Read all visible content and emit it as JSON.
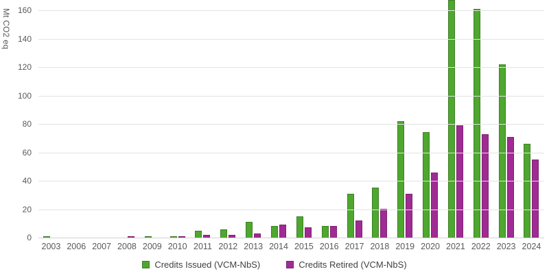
{
  "chart_data": {
    "type": "bar",
    "title": "",
    "xlabel": "",
    "ylabel": "Mt CO2 eq",
    "ylim": [
      0,
      160
    ],
    "yticks": [
      0,
      20,
      40,
      60,
      80,
      100,
      120,
      140,
      160
    ],
    "grid": true,
    "legend_position": "bottom",
    "categories": [
      "2003",
      "2006",
      "2007",
      "2008",
      "2009",
      "2010",
      "2011",
      "2012",
      "2013",
      "2014",
      "2015",
      "2016",
      "2017",
      "2018",
      "2019",
      "2020",
      "2021",
      "2022",
      "2023",
      "2024"
    ],
    "series": [
      {
        "name": "Credits Issued (VCM-NbS)",
        "color": "#4EA72E",
        "border_color": "#3E7F26",
        "values": [
          1,
          0,
          0,
          0,
          1,
          1,
          5,
          6,
          11,
          8,
          15,
          8,
          31,
          35,
          82,
          74,
          167,
          161,
          122,
          66
        ]
      },
      {
        "name": "Credits Retired (VCM-NbS)",
        "color": "#A02B93",
        "border_color": "#7D2173",
        "values": [
          0,
          0,
          0,
          1,
          0,
          1,
          2,
          2,
          3,
          9,
          7,
          8,
          12,
          20,
          31,
          46,
          79,
          73,
          71,
          55
        ]
      }
    ]
  },
  "colors": {
    "gridline": "#E3E3E3",
    "baseline": "#D2D2D2",
    "tick_text": "#595959",
    "legend_text": "#404040",
    "background": "#FFFFFF"
  }
}
